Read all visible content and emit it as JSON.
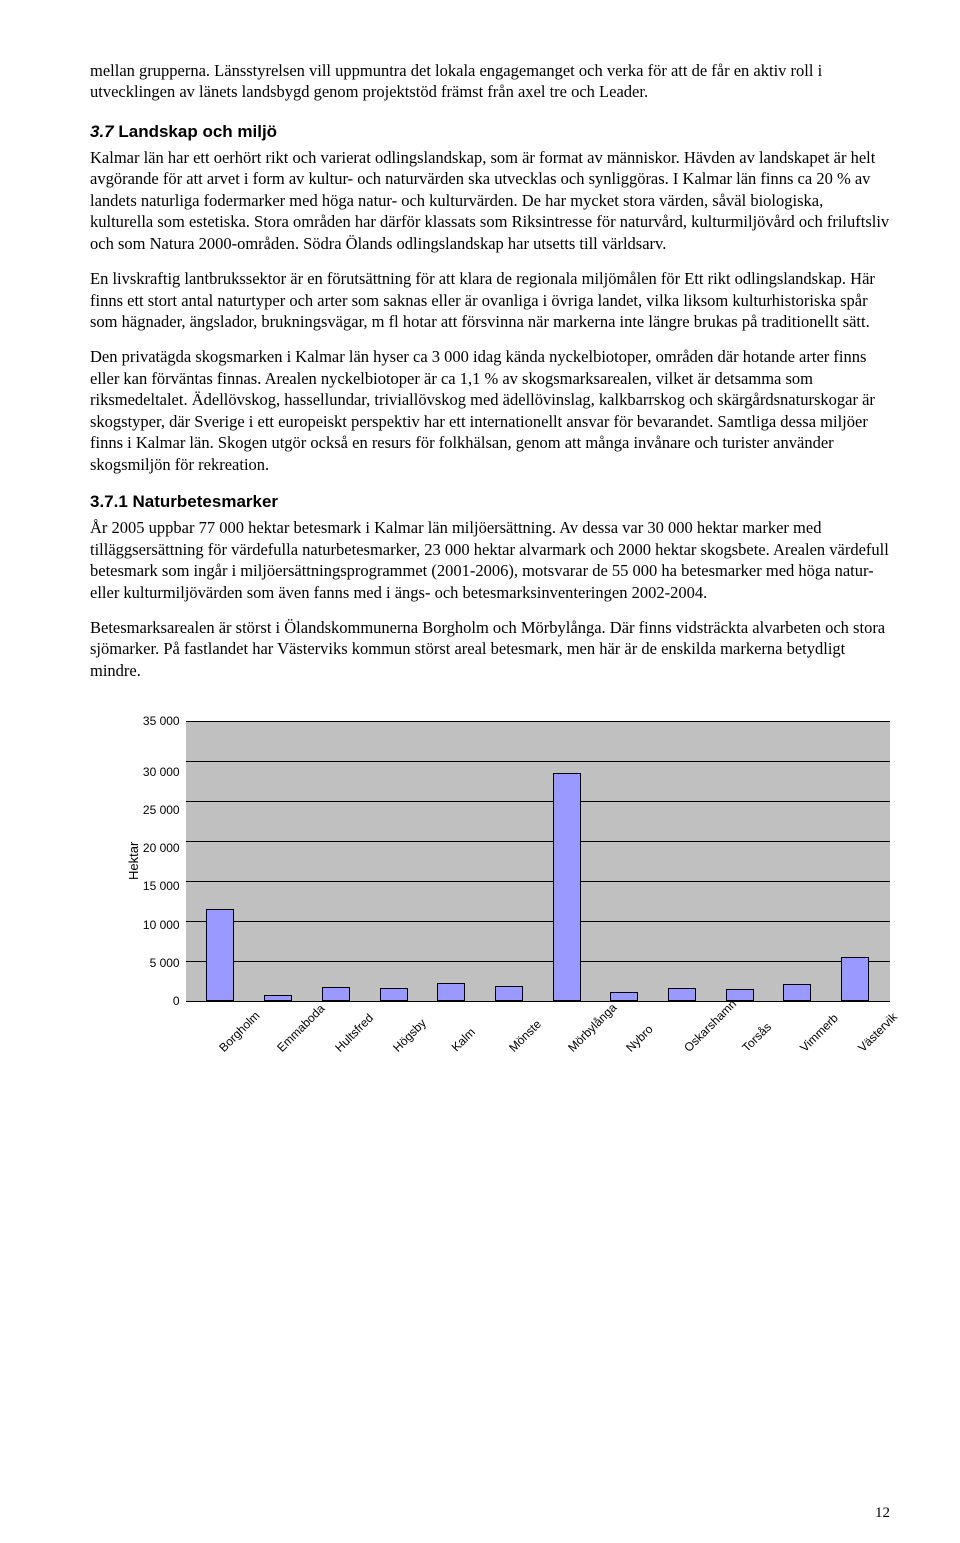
{
  "p1": "mellan grupperna. Länsstyrelsen vill uppmuntra det lokala engagemanget och verka för att de får en aktiv roll i utvecklingen av länets landsbygd genom projektstöd främst från axel tre och Leader.",
  "sec37_num": "3.7",
  "sec37_title": " Landskap och miljö",
  "p2": "Kalmar län har ett oerhört rikt och varierat odlingslandskap, som är format av människor. Hävden av landskapet är helt avgörande för att arvet i form av kultur- och naturvärden ska utvecklas och synliggöras. I Kalmar län finns ca 20 % av landets naturliga fodermarker med höga natur- och kulturvärden. De har mycket stora värden, såväl biologiska, kulturella som estetiska. Stora områden har därför klassats som Riksintresse för naturvård, kulturmiljövård och friluftsliv och som Natura 2000-områden. Södra Ölands odlingslandskap har utsetts till världsarv.",
  "p3": "En livskraftig lantbrukssektor är en förutsättning för att klara de regionala miljömålen för Ett rikt odlingslandskap. Här finns ett stort antal naturtyper och arter som saknas eller är ovanliga i övriga landet, vilka liksom kulturhistoriska spår som hägnader, ängslador, brukningsvägar, m fl hotar att försvinna när markerna inte längre brukas på traditionellt sätt.",
  "p4": "Den privatägda skogsmarken i Kalmar län hyser ca 3 000 idag kända nyckelbiotoper, områden där hotande arter finns eller kan förväntas finnas. Arealen nyckelbiotoper är ca 1,1 % av skogsmarksarealen, vilket är detsamma som riksmedeltalet. Ädellövskog, hassellundar, triviallövskog med ädellövinslag, kalkbarrskog och skärgårdsnaturskogar är skogstyper, där Sverige i ett europeiskt perspektiv har ett internationellt ansvar för bevarandet. Samtliga dessa miljöer finns i Kalmar län. Skogen utgör också en resurs för folkhälsan, genom att många invånare och turister använder skogsmiljön för rekreation.",
  "sec371_title": "3.7.1 Naturbetesmarker",
  "p5": "År 2005 uppbar 77 000 hektar betesmark i Kalmar län miljöersättning. Av dessa var 30 000 hektar marker med tilläggsersättning för värdefulla naturbetesmarker, 23 000 hektar alvarmark och 2000 hektar skogsbete. Arealen värdefull betesmark som ingår i miljöersättningsprogrammet (2001-2006), motsvarar de 55 000 ha betesmarker med höga natur- eller kulturmiljövärden som även fanns med i ängs- och betesmarksinventeringen 2002-2004.",
  "p6": "Betesmarksarealen är störst i Ölandskommunerna Borgholm och Mörbylånga. Där finns vidsträckta alvarbeten och stora sjömarker. På fastlandet har Västerviks kommun störst areal betesmark, men här är de enskilda markerna betydligt mindre.",
  "chart": {
    "type": "bar",
    "ylabel": "Hektar",
    "ymax": 35000,
    "ytick_labels": [
      "35 000",
      "30 000",
      "25 000",
      "20 000",
      "15 000",
      "10 000",
      "5 000",
      "0"
    ],
    "categories": [
      "Borgholm",
      "Emmaboda",
      "Hultsfred",
      "Högsby",
      "Kalm",
      "Mönste",
      "Mörbylånga",
      "Nybro",
      "Oskarshamn",
      "Torsås",
      "Vimmerb",
      "Västervik"
    ],
    "values": [
      11500,
      800,
      1800,
      1700,
      2300,
      1900,
      28500,
      1100,
      1600,
      1500,
      2200,
      5500
    ],
    "bar_color": "#9999ff",
    "background_color": "#c0c0c0",
    "grid_color": "#000000"
  },
  "page_number": "12"
}
